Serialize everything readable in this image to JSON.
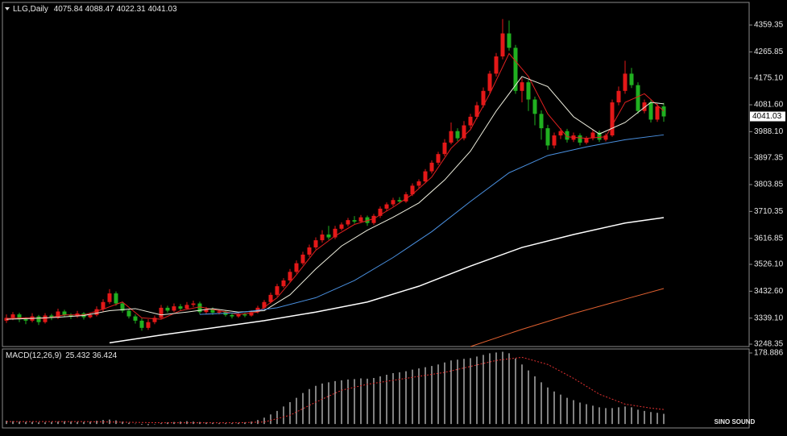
{
  "chart_data": [
    {
      "type": "candlestick",
      "title": "LLG,Daily",
      "up_color": "#e41818",
      "down_color": "#20b020",
      "ohlc": [
        [
          3330,
          3352,
          3322,
          3340
        ],
        [
          3340,
          3360,
          3332,
          3352
        ],
        [
          3352,
          3358,
          3325,
          3335
        ],
        [
          3335,
          3342,
          3318,
          3330
        ],
        [
          3330,
          3356,
          3324,
          3345
        ],
        [
          3345,
          3350,
          3315,
          3325
        ],
        [
          3325,
          3356,
          3320,
          3348
        ],
        [
          3348,
          3354,
          3332,
          3340
        ],
        [
          3340,
          3372,
          3336,
          3362
        ],
        [
          3362,
          3368,
          3342,
          3350
        ],
        [
          3350,
          3356,
          3336,
          3345
        ],
        [
          3345,
          3364,
          3340,
          3355
        ],
        [
          3355,
          3360,
          3334,
          3342
        ],
        [
          3342,
          3358,
          3338,
          3350
        ],
        [
          3350,
          3380,
          3345,
          3370
        ],
        [
          3370,
          3405,
          3362,
          3395
        ],
        [
          3395,
          3440,
          3388,
          3425
        ],
        [
          3425,
          3432,
          3382,
          3390
        ],
        [
          3390,
          3396,
          3358,
          3365
        ],
        [
          3365,
          3372,
          3338,
          3345
        ],
        [
          3345,
          3352,
          3320,
          3330
        ],
        [
          3330,
          3338,
          3295,
          3305
        ],
        [
          3305,
          3335,
          3298,
          3325
        ],
        [
          3325,
          3348,
          3318,
          3340
        ],
        [
          3340,
          3385,
          3335,
          3375
        ],
        [
          3375,
          3382,
          3358,
          3365
        ],
        [
          3365,
          3390,
          3360,
          3380
        ],
        [
          3380,
          3388,
          3366,
          3372
        ],
        [
          3372,
          3395,
          3368,
          3385
        ],
        [
          3385,
          3400,
          3378,
          3390
        ],
        [
          3390,
          3396,
          3352,
          3360
        ],
        [
          3360,
          3378,
          3354,
          3370
        ],
        [
          3370,
          3376,
          3350,
          3358
        ],
        [
          3358,
          3368,
          3352,
          3362
        ],
        [
          3362,
          3366,
          3344,
          3350
        ],
        [
          3350,
          3356,
          3338,
          3345
        ],
        [
          3345,
          3360,
          3340,
          3352
        ],
        [
          3352,
          3358,
          3342,
          3348
        ],
        [
          3348,
          3366,
          3344,
          3360
        ],
        [
          3360,
          3382,
          3355,
          3375
        ],
        [
          3375,
          3402,
          3370,
          3395
        ],
        [
          3395,
          3428,
          3390,
          3420
        ],
        [
          3420,
          3458,
          3414,
          3450
        ],
        [
          3450,
          3478,
          3444,
          3470
        ],
        [
          3470,
          3510,
          3464,
          3500
        ],
        [
          3500,
          3540,
          3494,
          3530
        ],
        [
          3530,
          3570,
          3524,
          3560
        ],
        [
          3560,
          3595,
          3552,
          3585
        ],
        [
          3585,
          3620,
          3578,
          3610
        ],
        [
          3610,
          3645,
          3602,
          3630
        ],
        [
          3630,
          3660,
          3612,
          3620
        ],
        [
          3620,
          3660,
          3614,
          3650
        ],
        [
          3650,
          3672,
          3644,
          3665
        ],
        [
          3665,
          3688,
          3658,
          3680
        ],
        [
          3680,
          3694,
          3668,
          3675
        ],
        [
          3675,
          3698,
          3670,
          3690
        ],
        [
          3690,
          3696,
          3660,
          3670
        ],
        [
          3670,
          3702,
          3664,
          3695
        ],
        [
          3695,
          3728,
          3688,
          3720
        ],
        [
          3720,
          3742,
          3712,
          3735
        ],
        [
          3735,
          3758,
          3728,
          3750
        ],
        [
          3750,
          3760,
          3738,
          3745
        ],
        [
          3745,
          3778,
          3740,
          3770
        ],
        [
          3770,
          3808,
          3764,
          3800
        ],
        [
          3800,
          3822,
          3792,
          3815
        ],
        [
          3815,
          3858,
          3808,
          3850
        ],
        [
          3850,
          3888,
          3842,
          3880
        ],
        [
          3880,
          3918,
          3872,
          3910
        ],
        [
          3910,
          3962,
          3902,
          3950
        ],
        [
          3950,
          4020,
          3944,
          3990
        ],
        [
          3990,
          4000,
          3955,
          3965
        ],
        [
          3965,
          4025,
          3958,
          4010
        ],
        [
          4010,
          4050,
          4000,
          4040
        ],
        [
          4040,
          4092,
          4032,
          4080
        ],
        [
          4080,
          4142,
          4072,
          4130
        ],
        [
          4130,
          4200,
          4122,
          4190
        ],
        [
          4190,
          4262,
          4180,
          4250
        ],
        [
          4250,
          4380,
          4240,
          4330
        ],
        [
          4330,
          4375,
          4270,
          4280
        ],
        [
          4280,
          4290,
          4120,
          4130
        ],
        [
          4130,
          4175,
          4090,
          4160
        ],
        [
          4160,
          4168,
          4060,
          4100
        ],
        [
          4100,
          4110,
          4010,
          4050
        ],
        [
          4050,
          4062,
          3960,
          4000
        ],
        [
          4000,
          4012,
          3925,
          3940
        ],
        [
          3940,
          3985,
          3930,
          3975
        ],
        [
          3975,
          4000,
          3962,
          3990
        ],
        [
          3990,
          3998,
          3950,
          3960
        ],
        [
          3960,
          3985,
          3952,
          3975
        ],
        [
          3975,
          3982,
          3940,
          3950
        ],
        [
          3950,
          3972,
          3944,
          3965
        ],
        [
          3965,
          3995,
          3958,
          3985
        ],
        [
          3985,
          3992,
          3952,
          3960
        ],
        [
          3960,
          3982,
          3954,
          3975
        ],
        [
          3975,
          4100,
          3970,
          4090
        ],
        [
          4090,
          4145,
          4080,
          4130
        ],
        [
          4130,
          4235,
          4120,
          4190
        ],
        [
          4190,
          4210,
          4140,
          4150
        ],
        [
          4150,
          4160,
          4050,
          4060
        ],
        [
          4060,
          4100,
          4052,
          4090
        ],
        [
          4090,
          4098,
          4020,
          4030
        ],
        [
          4030,
          4085,
          4022,
          4075.84
        ],
        [
          4075.84,
          4088.47,
          4022.31,
          4041.03
        ]
      ],
      "lines": [
        {
          "color": "#e02020",
          "x": [
            0,
            3,
            6,
            9,
            12,
            15,
            18,
            21,
            24,
            27,
            30,
            33,
            36,
            39,
            42,
            45,
            48,
            51,
            54,
            57,
            60,
            63,
            66,
            69,
            72,
            75,
            78,
            81,
            84,
            87,
            90,
            93,
            96,
            99,
            102
          ],
          "values": [
            3338,
            3340,
            3338,
            3350,
            3350,
            3370,
            3395,
            3340,
            3335,
            3365,
            3378,
            3365,
            3352,
            3360,
            3410,
            3490,
            3575,
            3625,
            3665,
            3685,
            3725,
            3770,
            3830,
            3930,
            3995,
            4120,
            4260,
            4180,
            4050,
            3970,
            3965,
            3970,
            4090,
            4120,
            4060
          ]
        },
        {
          "color": "#f0f0e0",
          "x": [
            0,
            4,
            8,
            12,
            16,
            20,
            24,
            28,
            32,
            36,
            40,
            44,
            48,
            52,
            56,
            60,
            64,
            68,
            72,
            76,
            80,
            84,
            88,
            92,
            96,
            100,
            102
          ],
          "values": [
            3335,
            3338,
            3342,
            3348,
            3365,
            3372,
            3350,
            3360,
            3372,
            3360,
            3365,
            3420,
            3510,
            3590,
            3645,
            3690,
            3740,
            3820,
            3920,
            4060,
            4180,
            4145,
            4040,
            3980,
            4020,
            4090,
            4085
          ]
        },
        {
          "color": "#4a90e0",
          "x": [
            30,
            36,
            42,
            48,
            54,
            60,
            66,
            72,
            78,
            84,
            90,
            96,
            102
          ],
          "values": [
            3352,
            3358,
            3375,
            3410,
            3470,
            3550,
            3640,
            3745,
            3845,
            3905,
            3935,
            3960,
            3977
          ]
        },
        {
          "color": "#ffffff",
          "x": [
            16,
            24,
            32,
            40,
            48,
            56,
            64,
            72,
            80,
            88,
            96,
            102
          ],
          "values": [
            3253,
            3280,
            3305,
            3330,
            3360,
            3395,
            3450,
            3520,
            3585,
            3630,
            3670,
            3689
          ]
        },
        {
          "color": "#e06030",
          "x": [
            72,
            80,
            88,
            96,
            102
          ],
          "values": [
            3240,
            3300,
            3355,
            3405,
            3442
          ]
        }
      ],
      "ylim": [
        3240,
        4438
      ],
      "yticks": [
        4359.35,
        4265.85,
        {
          "value": 4175.1,
          "label": "4175.10"
        },
        {
          "value": 4081.6,
          "label": "4081.60"
        },
        {
          "value": 3988.1,
          "label": "3988.10"
        },
        3897.35,
        3803.85,
        3710.35,
        3616.85,
        {
          "value": 3526.1,
          "label": "3526.10"
        },
        {
          "value": 3432.6,
          "label": "3432.60"
        },
        {
          "value": 3339.1,
          "label": "3339.10"
        },
        3248.35
      ],
      "watermark": "SINO SOUND"
    },
    {
      "type": "macd",
      "title": "MACD(12,26,9)",
      "color": "#ffffff",
      "values": [
        8,
        7,
        6,
        5,
        5,
        4,
        4,
        5,
        6,
        7,
        6,
        5,
        5,
        6,
        8,
        10,
        11,
        9,
        6,
        3,
        1,
        -2,
        -3,
        -1,
        2,
        4,
        5,
        6,
        7,
        6,
        5,
        4,
        3,
        2,
        2,
        2,
        3,
        4,
        6,
        10,
        16,
        24,
        33,
        44,
        55,
        66,
        78,
        88,
        96,
        102,
        105,
        108,
        110,
        112,
        113,
        115,
        114,
        116,
        120,
        124,
        128,
        130,
        133,
        137,
        140,
        143,
        146,
        150,
        155,
        160,
        162,
        164,
        166,
        170,
        174,
        178,
        180,
        182,
        178,
        165,
        150,
        135,
        120,
        105,
        92,
        82,
        74,
        66,
        60,
        54,
        50,
        46,
        42,
        40,
        40,
        42,
        44,
        42,
        36,
        33,
        30,
        28,
        25.432
      ],
      "signal": {
        "color": "#e03030",
        "x": [
          0,
          12,
          24,
          36,
          40,
          44,
          48,
          52,
          56,
          60,
          64,
          68,
          72,
          76,
          80,
          84,
          88,
          92,
          96,
          100,
          102
        ],
        "values": [
          6,
          6,
          3,
          3,
          5,
          22,
          55,
          85,
          100,
          110,
          120,
          130,
          145,
          160,
          168,
          150,
          115,
          75,
          50,
          40,
          36.424
        ]
      },
      "ylim": [
        -10,
        189
      ],
      "yticks": [
        178.886
      ]
    }
  ]
}
